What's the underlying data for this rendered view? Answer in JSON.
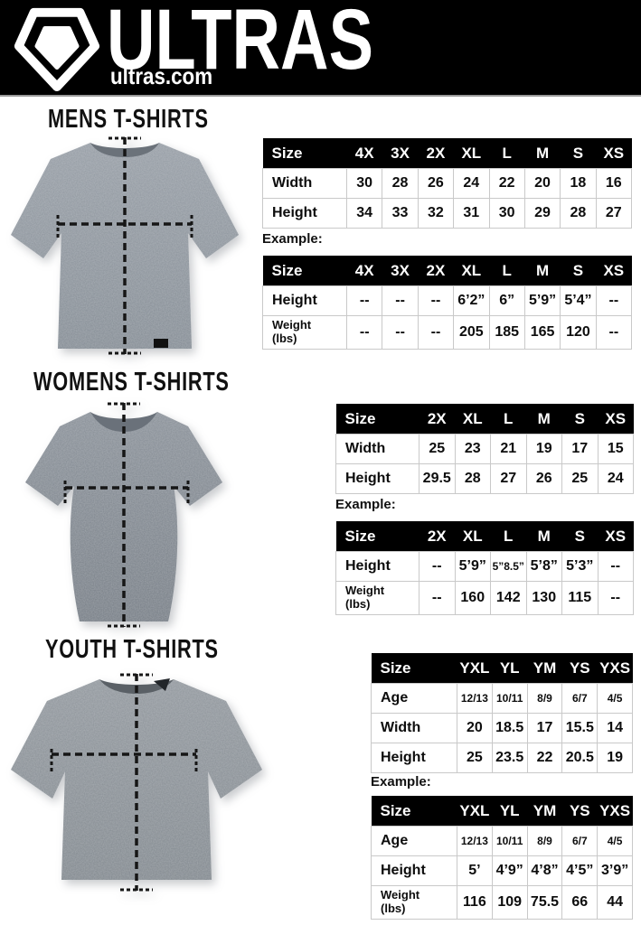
{
  "header": {
    "brand": "ULTRAS",
    "site": "ultras.com"
  },
  "colors": {
    "header_bg": "#000000",
    "table_header_bg": "#000000",
    "table_header_text": "#ffffff",
    "table_grid": "#c9c9c9",
    "shirt_gray_mens": "#8b929a",
    "shirt_gray_womens": "#7e858d",
    "shirt_gray_youth": "#888e95"
  },
  "sections": [
    {
      "title": "MENS T-SHIRTS",
      "example_label": "Example:",
      "size_table": {
        "header": [
          "Size",
          "4X",
          "3X",
          "2X",
          "XL",
          "L",
          "M",
          "S",
          "XS"
        ],
        "rows": [
          {
            "label": "Width",
            "values": [
              "30",
              "28",
              "26",
              "24",
              "22",
              "20",
              "18",
              "16"
            ]
          },
          {
            "label": "Height",
            "values": [
              "34",
              "33",
              "32",
              "31",
              "30",
              "29",
              "28",
              "27"
            ]
          }
        ]
      },
      "example_table": {
        "header": [
          "Size",
          "4X",
          "3X",
          "2X",
          "XL",
          "L",
          "M",
          "S",
          "XS"
        ],
        "rows": [
          {
            "label": "Height",
            "values": [
              "--",
              "--",
              "--",
              "6’2”",
              "6”",
              "5’9”",
              "5’4”",
              "--"
            ]
          },
          {
            "label": "Weight\n(lbs)",
            "values": [
              "--",
              "--",
              "--",
              "205",
              "185",
              "165",
              "120",
              "--"
            ]
          }
        ]
      }
    },
    {
      "title": "WOMENS T-SHIRTS",
      "example_label": "Example:",
      "size_table": {
        "header": [
          "Size",
          "2X",
          "XL",
          "L",
          "M",
          "S",
          "XS"
        ],
        "rows": [
          {
            "label": "Width",
            "values": [
              "25",
              "23",
              "21",
              "19",
              "17",
              "15"
            ]
          },
          {
            "label": "Height",
            "values": [
              "29.5",
              "28",
              "27",
              "26",
              "25",
              "24"
            ]
          }
        ]
      },
      "example_table": {
        "header": [
          "Size",
          "2X",
          "XL",
          "L",
          "M",
          "S",
          "XS"
        ],
        "rows": [
          {
            "label": "Height",
            "values": [
              "--",
              "5’9”",
              {
                "t": "5”8.5”",
                "s": true
              },
              "5’8”",
              "5’3”",
              "--"
            ]
          },
          {
            "label": "Weight\n(lbs)",
            "values": [
              "--",
              "160",
              "142",
              "130",
              "115",
              "--"
            ]
          }
        ]
      }
    },
    {
      "title": "YOUTH T-SHIRTS",
      "example_label": "Example:",
      "size_table": {
        "header": [
          "Size",
          "YXL",
          "YL",
          "YM",
          "YS",
          "YXS"
        ],
        "rows": [
          {
            "label": "Age",
            "small": true,
            "values": [
              "12/13",
              "10/11",
              "8/9",
              "6/7",
              "4/5"
            ]
          },
          {
            "label": "Width",
            "values": [
              "20",
              "18.5",
              "17",
              "15.5",
              "14"
            ]
          },
          {
            "label": "Height",
            "values": [
              "25",
              "23.5",
              "22",
              "20.5",
              "19"
            ]
          }
        ]
      },
      "example_table": {
        "header": [
          "Size",
          "YXL",
          "YL",
          "YM",
          "YS",
          "YXS"
        ],
        "rows": [
          {
            "label": "Age",
            "small": true,
            "values": [
              "12/13",
              "10/11",
              "8/9",
              "6/7",
              "4/5"
            ]
          },
          {
            "label": "Height",
            "values": [
              "5’",
              "4’9”",
              "4’8”",
              "4’5”",
              "3’9”"
            ]
          },
          {
            "label": "Weight\n(lbs)",
            "values": [
              "116",
              "109",
              "75.5",
              "66",
              "44"
            ]
          }
        ]
      }
    }
  ]
}
